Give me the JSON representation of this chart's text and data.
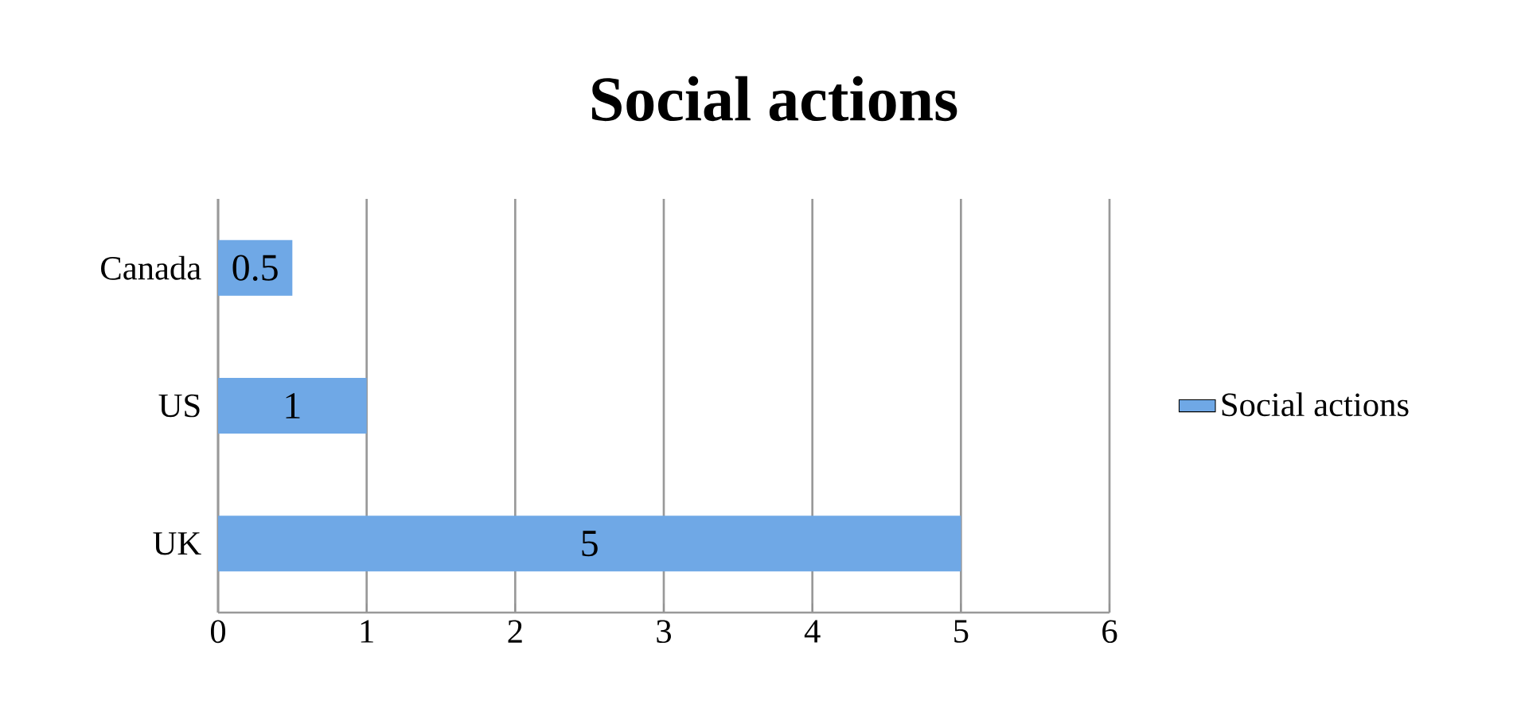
{
  "chart_data": {
    "type": "bar",
    "orientation": "horizontal",
    "title": "Social actions",
    "categories": [
      "Canada",
      "US",
      "UK"
    ],
    "series": [
      {
        "name": "Social actions",
        "color": "#6fa8e6",
        "values": [
          0.5,
          1,
          5
        ]
      }
    ],
    "xlim": [
      0,
      6
    ],
    "xticks": [
      0,
      1,
      2,
      3,
      4,
      5,
      6
    ],
    "grid": "x",
    "legend": "right",
    "data_labels": true
  }
}
